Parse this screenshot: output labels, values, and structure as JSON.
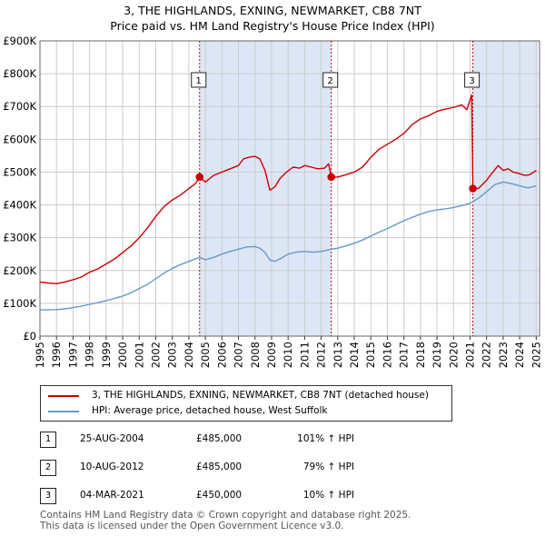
{
  "title": "3, THE HIGHLANDS, EXNING, NEWMARKET, CB8 7NT",
  "subtitle": "Price paid vs. HM Land Registry's House Price Index (HPI)",
  "colors": {
    "property": "#cc0000",
    "hpi": "#6699cc",
    "shade": "#dde6f5",
    "marker_line": "#cc0000"
  },
  "chart_data": {
    "type": "line",
    "title": "3, THE HIGHLANDS, EXNING, NEWMARKET, CB8 7NT",
    "xlabel": "",
    "ylabel": "",
    "xlim": [
      1995,
      2025.2
    ],
    "ylim": [
      0,
      900000
    ],
    "y_ticks": [
      {
        "value": 0,
        "label": "£0"
      },
      {
        "value": 100000,
        "label": "£100K"
      },
      {
        "value": 200000,
        "label": "£200K"
      },
      {
        "value": 300000,
        "label": "£300K"
      },
      {
        "value": 400000,
        "label": "£400K"
      },
      {
        "value": 500000,
        "label": "£500K"
      },
      {
        "value": 600000,
        "label": "£600K"
      },
      {
        "value": 700000,
        "label": "£700K"
      },
      {
        "value": 800000,
        "label": "£800K"
      },
      {
        "value": 900000,
        "label": "£900K"
      }
    ],
    "x_ticks": [
      "1995",
      "1996",
      "1997",
      "1998",
      "1999",
      "2000",
      "2001",
      "2002",
      "2003",
      "2004",
      "2005",
      "2006",
      "2007",
      "2008",
      "2009",
      "2010",
      "2011",
      "2012",
      "2013",
      "2014",
      "2015",
      "2016",
      "2017",
      "2018",
      "2019",
      "2020",
      "2021",
      "2022",
      "2023",
      "2024",
      "2025"
    ],
    "grid": true,
    "shaded_ranges": [
      [
        2004.65,
        2012.61
      ],
      [
        2021.17,
        2025.1
      ]
    ],
    "series": [
      {
        "name": "3, THE HIGHLANDS, EXNING, NEWMARKET, CB8 7NT (detached house)",
        "color": "#cc0000",
        "x": [
          1995,
          1995.5,
          1996,
          1996.5,
          1997,
          1997.5,
          1998,
          1998.5,
          1999,
          1999.5,
          2000,
          2000.5,
          2001,
          2001.5,
          2002,
          2002.5,
          2003,
          2003.5,
          2004,
          2004.4,
          2004.65,
          2005,
          2005.5,
          2006,
          2006.5,
          2007,
          2007.3,
          2007.6,
          2008,
          2008.3,
          2008.6,
          2008.9,
          2009.2,
          2009.5,
          2009.9,
          2010.3,
          2010.7,
          2011,
          2011.4,
          2011.8,
          2012.2,
          2012.45,
          2012.61,
          2013,
          2013.5,
          2014,
          2014.5,
          2015,
          2015.5,
          2016,
          2016.5,
          2017,
          2017.5,
          2018,
          2018.5,
          2019,
          2019.5,
          2019.8,
          2020.2,
          2020.5,
          2020.8,
          2021.0,
          2021.1,
          2021.17,
          2021.5,
          2022,
          2022.3,
          2022.7,
          2023,
          2023.3,
          2023.6,
          2024,
          2024.3,
          2024.6,
          2025
        ],
        "y": [
          165000,
          162000,
          160000,
          165000,
          172000,
          180000,
          195000,
          205000,
          220000,
          235000,
          255000,
          275000,
          300000,
          330000,
          365000,
          395000,
          415000,
          430000,
          450000,
          465000,
          485000,
          470000,
          490000,
          500000,
          510000,
          520000,
          540000,
          545000,
          548000,
          540000,
          505000,
          445000,
          455000,
          480000,
          500000,
          515000,
          512000,
          520000,
          515000,
          510000,
          512000,
          525000,
          485000,
          485000,
          492000,
          500000,
          515000,
          545000,
          570000,
          585000,
          600000,
          618000,
          645000,
          662000,
          672000,
          685000,
          692000,
          695000,
          700000,
          705000,
          690000,
          720000,
          735000,
          450000,
          450000,
          475000,
          495000,
          520000,
          505000,
          510000,
          500000,
          495000,
          490000,
          492000,
          505000
        ]
      },
      {
        "name": "HPI: Average price, detached house, West Suffolk",
        "color": "#6699cc",
        "x": [
          1995,
          1995.5,
          1996,
          1996.5,
          1997,
          1997.5,
          1998,
          1998.5,
          1999,
          1999.5,
          2000,
          2000.5,
          2001,
          2001.5,
          2002,
          2002.5,
          2003,
          2003.5,
          2004,
          2004.65,
          2005,
          2005.5,
          2006,
          2006.5,
          2007,
          2007.5,
          2008,
          2008.3,
          2008.6,
          2008.9,
          2009.2,
          2009.6,
          2010,
          2010.5,
          2011,
          2011.5,
          2012,
          2012.61,
          2013,
          2013.5,
          2014,
          2014.5,
          2015,
          2015.5,
          2016,
          2016.5,
          2017,
          2017.5,
          2018,
          2018.5,
          2019,
          2019.5,
          2020,
          2020.5,
          2021,
          2021.17,
          2021.5,
          2022,
          2022.5,
          2023,
          2023.5,
          2024,
          2024.5,
          2025
        ],
        "y": [
          80000,
          80000,
          81000,
          83000,
          87000,
          91000,
          97000,
          102000,
          108000,
          115000,
          122000,
          132000,
          145000,
          158000,
          175000,
          192000,
          207000,
          218000,
          228000,
          240000,
          233000,
          240000,
          250000,
          258000,
          265000,
          272000,
          273000,
          268000,
          255000,
          232000,
          228000,
          238000,
          250000,
          256000,
          258000,
          256000,
          258000,
          265000,
          268000,
          275000,
          283000,
          293000,
          305000,
          317000,
          328000,
          340000,
          352000,
          362000,
          372000,
          380000,
          385000,
          388000,
          392000,
          398000,
          405000,
          410000,
          420000,
          440000,
          462000,
          470000,
          465000,
          458000,
          452000,
          458000
        ]
      }
    ],
    "sales": [
      {
        "id": "1",
        "x": 2004.65,
        "price": 485000
      },
      {
        "id": "2",
        "x": 2012.61,
        "price": 485000
      },
      {
        "id": "3",
        "x": 2021.17,
        "price": 450000
      }
    ]
  },
  "legend": {
    "property_label": "3, THE HIGHLANDS, EXNING, NEWMARKET, CB8 7NT (detached house)",
    "hpi_label": "HPI: Average price, detached house, West Suffolk"
  },
  "transactions": [
    {
      "id": "1",
      "date": "25-AUG-2004",
      "price": "£485,000",
      "pct": "101% ↑ HPI"
    },
    {
      "id": "2",
      "date": "10-AUG-2012",
      "price": "£485,000",
      "pct": "79% ↑ HPI"
    },
    {
      "id": "3",
      "date": "04-MAR-2021",
      "price": "£450,000",
      "pct": "10% ↑ HPI"
    }
  ],
  "footer": {
    "line1": "Contains HM Land Registry data © Crown copyright and database right 2025.",
    "line2": "This data is licensed under the Open Government Licence v3.0."
  }
}
